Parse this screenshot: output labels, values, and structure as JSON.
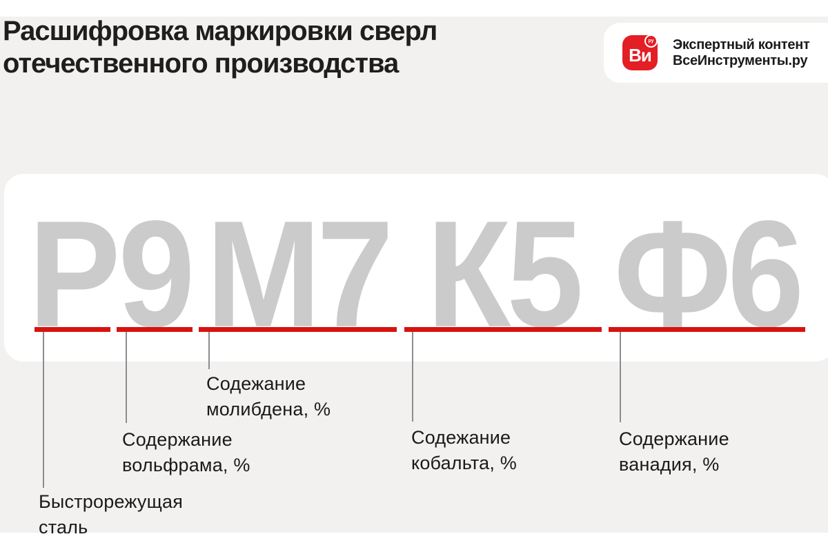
{
  "header": {
    "title": "Расшифровка маркировки сверл\nотечественного производства",
    "brand_badge": {
      "icon_text": "Ви",
      "icon_superscript": "ру",
      "text": "Экспертный контент\nВсеИнструменты.ру"
    }
  },
  "marking": {
    "full_code": "Р9М7К5Ф6",
    "segments": [
      {
        "chars": "Р",
        "label": "Быстрорежущая\nсталь"
      },
      {
        "chars": "9",
        "label": "Содержание\nвольфрама, %"
      },
      {
        "chars": "М7",
        "label": "Содежание\nмолибдена, %"
      },
      {
        "chars": "К5",
        "label": "Содежание\nкобальта, %"
      },
      {
        "chars": "Ф6",
        "label": "Содержание\nванадия, %"
      }
    ]
  },
  "colors": {
    "accent_red": "#d8120e",
    "brand_red": "#e31e24",
    "letter_gray": "#cbcbcb",
    "panel_gray": "#f2f1ef"
  }
}
